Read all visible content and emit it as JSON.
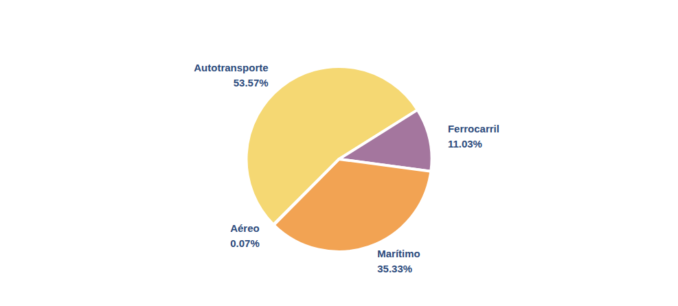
{
  "chart_data": {
    "type": "pie",
    "categories": [
      "Autotransporte",
      "Ferrocarril",
      "Marítimo",
      "Aéreo"
    ],
    "values": [
      53.57,
      11.03,
      35.33,
      0.07
    ],
    "value_labels": [
      "53.57%",
      "11.03%",
      "35.33%",
      "0.07%"
    ],
    "colors": [
      "#f5d873",
      "#a4769e",
      "#f2a353",
      "#5e9f87"
    ],
    "data_labels": true
  }
}
